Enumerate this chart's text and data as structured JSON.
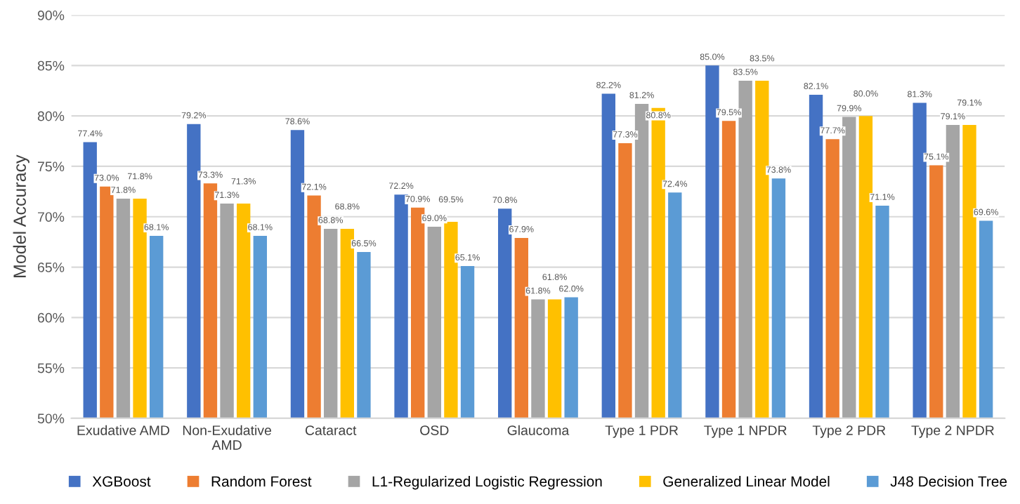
{
  "chart_data": {
    "type": "bar",
    "ylabel": "Model Accuracy",
    "categories": [
      "Exudative AMD",
      "Non-Exudative AMD",
      "Cataract",
      "OSD",
      "Glaucoma",
      "Type 1 PDR",
      "Type 1 NPDR",
      "Type 2 PDR",
      "Type 2 NPDR"
    ],
    "series": [
      {
        "name": "XGBoost",
        "color": "#4472c4",
        "values": [
          77.4,
          79.2,
          78.6,
          72.2,
          70.8,
          82.2,
          85.0,
          82.1,
          81.3
        ],
        "value_labels": [
          "77.4%",
          "79.2%",
          "78.6%",
          "72.2%",
          "70.8%",
          "82.2%",
          "85.0%",
          "82.1%",
          "81.3%"
        ]
      },
      {
        "name": "Random Forest",
        "color": "#ed7d31",
        "values": [
          73.0,
          73.3,
          72.1,
          70.9,
          67.9,
          77.3,
          79.5,
          77.7,
          75.1
        ],
        "value_labels": [
          "73.0%",
          "73.3%",
          "72.1%",
          "70.9%",
          "67.9%",
          "77.3%",
          "79.5%",
          "77.7%",
          "75.1%"
        ]
      },
      {
        "name": "L1-Regularized Logistic Regression",
        "color": "#a5a5a5",
        "values": [
          71.8,
          71.3,
          68.8,
          69.0,
          61.8,
          81.2,
          83.5,
          79.9,
          79.1
        ],
        "value_labels": [
          "71.8%",
          "71.3%",
          "68.8%",
          "69.0%",
          "61.8%",
          "81.2%",
          "83.5%",
          "79.9%",
          "79.1%"
        ]
      },
      {
        "name": "Generalized Linear Model",
        "color": "#ffc000",
        "values": [
          71.8,
          71.3,
          68.8,
          69.5,
          61.8,
          80.8,
          83.5,
          80.0,
          79.1
        ],
        "value_labels": [
          "71.8%",
          "71.3%",
          "68.8%",
          "69.5%",
          "61.8%",
          "80.8%",
          "83.5%",
          "80.0%",
          "79.1%"
        ]
      },
      {
        "name": "J48 Decision Tree",
        "color": "#5b9bd5",
        "values": [
          68.1,
          68.1,
          66.5,
          65.1,
          62.0,
          72.4,
          73.8,
          71.1,
          69.6
        ],
        "value_labels": [
          "68.1%",
          "68.1%",
          "66.5%",
          "65.1%",
          "62.0%",
          "72.4%",
          "73.8%",
          "71.1%",
          "69.6%"
        ]
      }
    ],
    "ylim": [
      50,
      90
    ],
    "yticks": [
      {
        "value": 50,
        "label": "50%"
      },
      {
        "value": 55,
        "label": "55%"
      },
      {
        "value": 60,
        "label": "60%"
      },
      {
        "value": 65,
        "label": "65%"
      },
      {
        "value": 70,
        "label": "70%"
      },
      {
        "value": 75,
        "label": "75%"
      },
      {
        "value": 80,
        "label": "80%"
      },
      {
        "value": 85,
        "label": "85%"
      },
      {
        "value": 90,
        "label": "90%"
      }
    ],
    "grid": "y",
    "legend": "bottom"
  }
}
